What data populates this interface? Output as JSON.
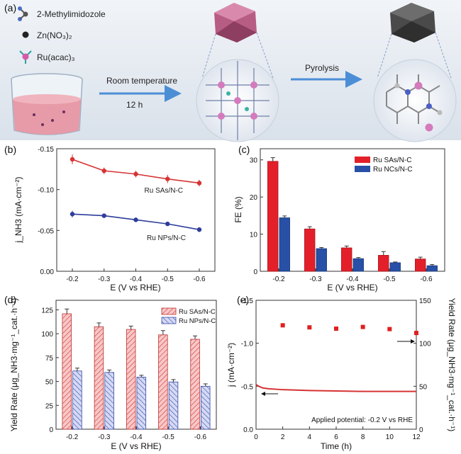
{
  "scheme": {
    "panel_label": "(a)",
    "legend": {
      "methylimidazole": "2-Methylimidozole",
      "zinc_nitrate": "Zn(NO₃)₂",
      "ru_acac": "Ru(acac)₃"
    },
    "step1_top": "Room temperature",
    "step1_bottom": "12 h",
    "step2": "Pyrolysis"
  },
  "chart_data": [
    {
      "panel": "(b)",
      "type": "line",
      "xlabel": "E (V vs RHE)",
      "ylabel": "j_NH3 (mA·cm⁻²)",
      "categories": [
        "-0.2",
        "-0.3",
        "-0.4",
        "-0.5",
        "-0.6"
      ],
      "ylim": [
        0,
        -0.15
      ],
      "yticks": [
        "0.00",
        "-0.05",
        "-0.10",
        "-0.15"
      ],
      "series": [
        {
          "name": "Ru SAs/N-C",
          "color": "#d63333",
          "values": [
            -0.137,
            -0.123,
            -0.119,
            -0.113,
            -0.108
          ],
          "errors": [
            0.006,
            0.004,
            0.004,
            0.005,
            0.004
          ]
        },
        {
          "name": "Ru NPs/N-C",
          "color": "#2e3d9a",
          "values": [
            -0.07,
            -0.068,
            -0.063,
            -0.058,
            -0.051
          ],
          "errors": [
            0.004,
            0.002,
            0.002,
            0.002,
            0.003
          ]
        }
      ]
    },
    {
      "panel": "(c)",
      "type": "bar",
      "xlabel": "E (V vs RHE)",
      "ylabel": "FE (%)",
      "categories": [
        "-0.2",
        "-0.3",
        "-0.4",
        "-0.5",
        "-0.6"
      ],
      "ylim": [
        0,
        33
      ],
      "yticks": [
        "0",
        "10",
        "20",
        "30"
      ],
      "legend_position": "top-right",
      "series": [
        {
          "name": "Ru SAs/N-C",
          "color": "#e3202a",
          "values": [
            29.6,
            11.4,
            6.3,
            4.3,
            3.3
          ],
          "errors": [
            1.0,
            0.6,
            0.5,
            1.0,
            0.5
          ]
        },
        {
          "name": "Ru NCs/N-C",
          "color": "#2750a6",
          "values": [
            14.4,
            6.1,
            3.4,
            2.3,
            1.5
          ],
          "errors": [
            0.5,
            0.3,
            0.3,
            0.2,
            0.3
          ]
        }
      ]
    },
    {
      "panel": "(d)",
      "type": "bar",
      "xlabel": "E (V vs RHE)",
      "ylabel": "Yield Rate (μg_NH3·mg⁻¹_cat.·h⁻¹)",
      "categories": [
        "-0.2",
        "-0.3",
        "-0.4",
        "-0.5",
        "-0.6"
      ],
      "ylim": [
        0,
        135
      ],
      "yticks": [
        "0",
        "25",
        "50",
        "75",
        "100",
        "125"
      ],
      "legend_position": "top-right",
      "series": [
        {
          "name": "Ru SAs/N-C",
          "color": "#f2aaaa",
          "values": [
            120.9,
            107.3,
            104.5,
            98.8,
            94.2
          ],
          "errors": [
            5.0,
            4.0,
            3.5,
            4.5,
            3.5
          ]
        },
        {
          "name": "Ru NPs/N-C",
          "color": "#b8c0e8",
          "values": [
            61.0,
            59.5,
            54.5,
            49.5,
            45.0
          ],
          "errors": [
            3.0,
            2.5,
            2.0,
            2.5,
            2.5
          ]
        }
      ]
    },
    {
      "panel": "(e)",
      "type": "line",
      "xlabel": "Time (h)",
      "ylabel": "j (mA·cm⁻²)",
      "ylabel_right": "Yield Rate (μg_NH3·mg⁻¹_cat.·h⁻¹)",
      "xlim": [
        0,
        12
      ],
      "xticks": [
        "0",
        "2",
        "4",
        "6",
        "8",
        "10",
        "12"
      ],
      "ylim": [
        0,
        -1.5
      ],
      "yticks": [
        "0.0",
        "-0.5",
        "-1.0",
        "-1.5"
      ],
      "ylim_right": [
        0,
        150
      ],
      "yticks_right": [
        "0",
        "50",
        "100",
        "150"
      ],
      "annotation": "Applied potential: -0.2 V vs RHE",
      "series": [
        {
          "axis": "left",
          "color": "#d63333",
          "x": [
            0,
            0.2,
            0.5,
            1,
            2,
            3,
            4,
            6,
            8,
            10,
            12
          ],
          "values": [
            -0.52,
            -0.5,
            -0.48,
            -0.47,
            -0.46,
            -0.455,
            -0.45,
            -0.445,
            -0.44,
            -0.44,
            -0.44
          ]
        },
        {
          "axis": "right",
          "color": "#e02020",
          "marker": "square",
          "x": [
            2,
            4,
            6,
            8,
            10,
            12
          ],
          "values": [
            120.9,
            118.5,
            117.0,
            119.0,
            116.5,
            112.0
          ]
        }
      ]
    }
  ]
}
